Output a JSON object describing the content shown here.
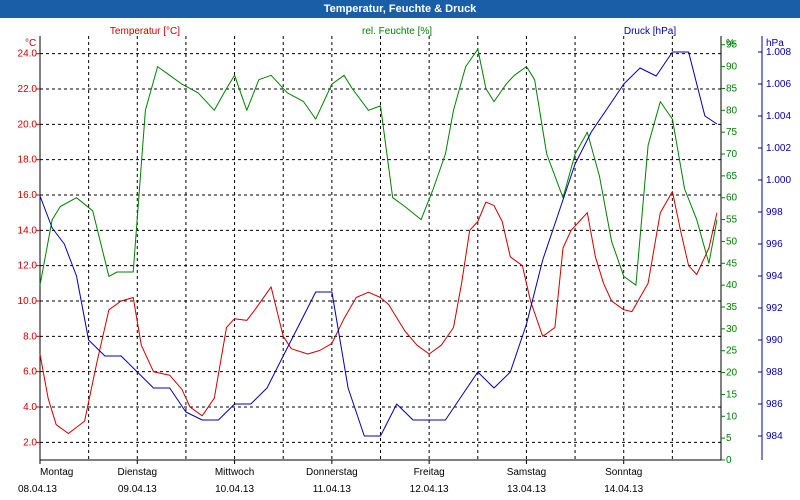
{
  "window": {
    "title": "Temperatur, Feuchte & Druck"
  },
  "colors": {
    "temperature": "#cc0000",
    "humidity": "#008000",
    "pressure": "#0000aa",
    "grid": "#000000",
    "title_bar": "#1b5ea8"
  },
  "chart_data": {
    "type": "line",
    "title": "Temperatur, Feuchte & Druck",
    "grid": true,
    "legend_placement": "top",
    "x_axis": {
      "type": "date",
      "range": [
        "2013-04-08 00:00",
        "2013-04-14 23:59"
      ],
      "ticks": [
        {
          "day": "Montag",
          "date": "08.04.13"
        },
        {
          "day": "Dienstag",
          "date": "09.04.13"
        },
        {
          "day": "Mittwoch",
          "date": "10.04.13"
        },
        {
          "day": "Donnerstag",
          "date": "11.04.13"
        },
        {
          "day": "Freitag",
          "date": "12.04.13"
        },
        {
          "day": "Samstag",
          "date": "13.04.13"
        },
        {
          "day": "Sonntag",
          "date": "14.04.13"
        }
      ]
    },
    "axes": {
      "temperature": {
        "label": "Temperatur [°C]",
        "unit": "°C",
        "range": [
          1.0,
          25.0
        ],
        "ticks": [
          "2.0",
          "4.0",
          "6.0",
          "8.0",
          "10.0",
          "12.0",
          "14.0",
          "16.0",
          "18.0",
          "20.0",
          "22.0",
          "24.0"
        ]
      },
      "humidity": {
        "label": "rel. Feuchte [%]",
        "unit": "%",
        "range": [
          0,
          97
        ],
        "ticks": [
          "0",
          "5",
          "10",
          "15",
          "20",
          "25",
          "30",
          "35",
          "40",
          "45",
          "50",
          "55",
          "60",
          "65",
          "70",
          "75",
          "80",
          "85",
          "90",
          "95"
        ]
      },
      "pressure": {
        "label": "Druck [hPa]",
        "unit": "hPa",
        "range": [
          982.5,
          1009
        ],
        "ticks": [
          "984",
          "986",
          "988",
          "990",
          "992",
          "994",
          "996",
          "998",
          "1.000",
          "1.002",
          "1.004",
          "1.006",
          "1.008"
        ]
      }
    },
    "series": [
      {
        "name": "Temperatur [°C]",
        "axis": "temperature",
        "x": [
          "2013-04-08 00:00",
          "2013-04-08 02:00",
          "2013-04-08 04:00",
          "2013-04-08 07:00",
          "2013-04-08 11:00",
          "2013-04-08 14:00",
          "2013-04-08 17:00",
          "2013-04-08 20:00",
          "2013-04-08 23:00",
          "2013-04-09 01:00",
          "2013-04-09 04:00",
          "2013-04-09 08:00",
          "2013-04-09 11:00",
          "2013-04-09 13:00",
          "2013-04-09 16:00",
          "2013-04-09 19:00",
          "2013-04-09 22:00",
          "2013-04-10 00:00",
          "2013-04-10 03:00",
          "2013-04-10 05:00",
          "2013-04-10 09:00",
          "2013-04-10 12:00",
          "2013-04-10 14:00",
          "2013-04-10 18:00",
          "2013-04-10 21:00",
          "2013-04-11 00:00",
          "2013-04-11 03:00",
          "2013-04-11 06:00",
          "2013-04-11 09:00",
          "2013-04-11 12:00",
          "2013-04-11 14:00",
          "2013-04-11 18:00",
          "2013-04-11 21:00",
          "2013-04-12 00:00",
          "2013-04-12 03:00",
          "2013-04-12 06:00",
          "2013-04-12 08:00",
          "2013-04-12 10:00",
          "2013-04-12 12:00",
          "2013-04-12 14:00",
          "2013-04-12 16:00",
          "2013-04-12 18:00",
          "2013-04-12 20:00",
          "2013-04-12 23:00",
          "2013-04-13 01:00",
          "2013-04-13 04:00",
          "2013-04-13 07:00",
          "2013-04-13 09:00",
          "2013-04-13 11:00",
          "2013-04-13 13:00",
          "2013-04-13 15:00",
          "2013-04-13 17:00",
          "2013-04-13 19:00",
          "2013-04-13 21:00",
          "2013-04-14 00:00",
          "2013-04-14 02:00",
          "2013-04-14 06:00",
          "2013-04-14 09:00",
          "2013-04-14 12:00",
          "2013-04-14 14:00",
          "2013-04-14 16:00",
          "2013-04-14 18:00",
          "2013-04-14 19:00",
          "2013-04-14 21:00",
          "2013-04-14 23:00"
        ],
        "values": [
          7.0,
          4.5,
          3.0,
          2.5,
          3.2,
          6.5,
          9.5,
          10.0,
          10.2,
          7.5,
          6.0,
          5.8,
          5.0,
          4.0,
          3.5,
          4.5,
          8.5,
          9.0,
          8.9,
          9.5,
          10.8,
          8.0,
          7.3,
          7.0,
          7.2,
          7.6,
          9.0,
          10.2,
          10.5,
          10.2,
          9.8,
          8.3,
          7.5,
          7.0,
          7.5,
          8.5,
          11.0,
          14.0,
          14.5,
          15.6,
          15.4,
          14.5,
          12.5,
          12.0,
          10.0,
          8.0,
          8.5,
          13.0,
          14.0,
          14.5,
          15.0,
          12.5,
          11.0,
          10.0,
          9.5,
          9.4,
          11.0,
          15.0,
          16.2,
          14.0,
          12.0,
          11.5,
          12.0,
          13.0,
          15.0
        ]
      },
      {
        "name": "rel. Feuchte [%]",
        "axis": "humidity",
        "x": [
          "2013-04-08 00:00",
          "2013-04-08 03:00",
          "2013-04-08 05:00",
          "2013-04-08 09:00",
          "2013-04-08 13:00",
          "2013-04-08 17:00",
          "2013-04-08 19:00",
          "2013-04-08 23:00",
          "2013-04-09 02:00",
          "2013-04-09 05:00",
          "2013-04-09 08:00",
          "2013-04-09 11:00",
          "2013-04-09 15:00",
          "2013-04-09 19:00",
          "2013-04-09 22:00",
          "2013-04-10 00:00",
          "2013-04-10 03:00",
          "2013-04-10 06:00",
          "2013-04-10 09:00",
          "2013-04-10 13:00",
          "2013-04-10 17:00",
          "2013-04-10 20:00",
          "2013-04-11 00:00",
          "2013-04-11 03:00",
          "2013-04-11 05:00",
          "2013-04-11 09:00",
          "2013-04-11 12:00",
          "2013-04-11 15:00",
          "2013-04-11 18:00",
          "2013-04-11 22:00",
          "2013-04-12 01:00",
          "2013-04-12 04:00",
          "2013-04-12 06:00",
          "2013-04-12 09:00",
          "2013-04-12 12:00",
          "2013-04-12 14:00",
          "2013-04-12 16:00",
          "2013-04-12 19:00",
          "2013-04-12 21:00",
          "2013-04-13 00:00",
          "2013-04-13 02:00",
          "2013-04-13 05:00",
          "2013-04-13 09:00",
          "2013-04-13 12:00",
          "2013-04-13 15:00",
          "2013-04-13 18:00",
          "2013-04-13 21:00",
          "2013-04-14 00:00",
          "2013-04-14 03:00",
          "2013-04-14 06:00",
          "2013-04-14 09:00",
          "2013-04-14 12:00",
          "2013-04-14 15:00",
          "2013-04-14 18:00",
          "2013-04-14 21:00",
          "2013-04-14 23:00"
        ],
        "values": [
          40,
          55,
          58,
          60,
          57,
          42,
          43,
          43,
          80,
          90,
          88,
          86,
          84,
          80,
          85,
          88,
          80,
          87,
          88,
          84,
          82,
          78,
          86,
          88,
          85,
          80,
          81,
          60,
          58,
          55,
          62,
          70,
          80,
          90,
          94,
          85,
          82,
          86,
          88,
          90,
          87,
          70,
          60,
          70,
          75,
          65,
          50,
          42,
          40,
          72,
          82,
          78,
          62,
          55,
          45,
          55
        ]
      },
      {
        "name": "Druck [hPa]",
        "axis": "pressure",
        "x": [
          "2013-04-08 00:00",
          "2013-04-08 03:00",
          "2013-04-08 06:00",
          "2013-04-08 09:00",
          "2013-04-08 12:00",
          "2013-04-08 16:00",
          "2013-04-08 20:00",
          "2013-04-09 00:00",
          "2013-04-09 04:00",
          "2013-04-09 08:00",
          "2013-04-09 12:00",
          "2013-04-09 16:00",
          "2013-04-09 20:00",
          "2013-04-10 00:00",
          "2013-04-10 04:00",
          "2013-04-10 08:00",
          "2013-04-10 12:00",
          "2013-04-10 16:00",
          "2013-04-10 20:00",
          "2013-04-11 00:00",
          "2013-04-11 04:00",
          "2013-04-11 08:00",
          "2013-04-11 12:00",
          "2013-04-11 16:00",
          "2013-04-11 20:00",
          "2013-04-12 00:00",
          "2013-04-12 04:00",
          "2013-04-12 08:00",
          "2013-04-12 12:00",
          "2013-04-12 16:00",
          "2013-04-12 20:00",
          "2013-04-13 00:00",
          "2013-04-13 04:00",
          "2013-04-13 08:00",
          "2013-04-13 12:00",
          "2013-04-13 16:00",
          "2013-04-13 20:00",
          "2013-04-14 00:00",
          "2013-04-14 04:00",
          "2013-04-14 08:00",
          "2013-04-14 12:00",
          "2013-04-14 16:00",
          "2013-04-14 20:00",
          "2013-04-14 23:00"
        ],
        "values": [
          999.0,
          997.0,
          996.0,
          994.0,
          990.0,
          989.0,
          989.0,
          988.0,
          987.0,
          987.0,
          985.5,
          985.0,
          985.0,
          986.0,
          986.0,
          987.0,
          989.0,
          991.0,
          993.0,
          993.0,
          987.0,
          984.0,
          984.0,
          986.0,
          985.0,
          985.0,
          985.0,
          986.5,
          988.0,
          987.0,
          988.0,
          991.0,
          995.0,
          998.0,
          1001.0,
          1003.0,
          1004.5,
          1006.0,
          1007.0,
          1006.5,
          1008.0,
          1008.0,
          1004.0,
          1003.5
        ]
      }
    ]
  }
}
